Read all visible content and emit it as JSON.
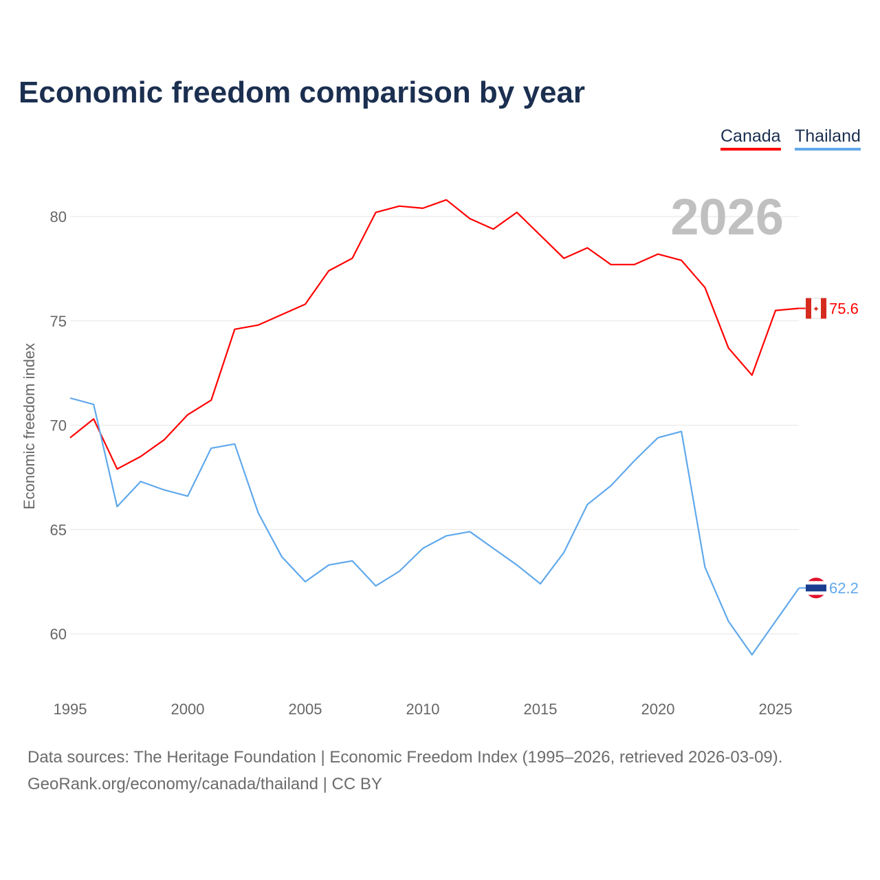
{
  "title": "Economic freedom comparison by year",
  "footer": {
    "line1": "Data sources: The Heritage Foundation | Economic Freedom Index (1995–2026, retrieved 2026-03-09).",
    "line2": "GeoRank.org/economy/canada/thailand | CC BY"
  },
  "chart_data": {
    "type": "line",
    "title": "Economic freedom comparison by year",
    "xlabel": "",
    "ylabel": "Economic freedom index",
    "year_label": "2026",
    "xlim": [
      1995,
      2026
    ],
    "ylim": [
      57.5,
      82.5
    ],
    "xticks": [
      1995,
      2000,
      2005,
      2010,
      2015,
      2020,
      2025
    ],
    "yticks": [
      60,
      65,
      70,
      75,
      80
    ],
    "grid": true,
    "legend_placement": "top-right",
    "x": [
      1995,
      1996,
      1997,
      1998,
      1999,
      2000,
      2001,
      2002,
      2003,
      2004,
      2005,
      2006,
      2007,
      2008,
      2009,
      2010,
      2011,
      2012,
      2013,
      2014,
      2015,
      2016,
      2017,
      2018,
      2019,
      2020,
      2021,
      2022,
      2023,
      2024,
      2025,
      2026
    ],
    "series": [
      {
        "name": "Canada",
        "color": "#ff0000",
        "end_label": "75.6",
        "values": [
          69.4,
          70.3,
          67.9,
          68.5,
          69.3,
          70.5,
          71.2,
          74.6,
          74.8,
          75.3,
          75.8,
          77.4,
          78.0,
          80.2,
          80.5,
          80.4,
          80.8,
          79.9,
          79.4,
          80.2,
          79.1,
          78.0,
          78.5,
          77.7,
          77.7,
          78.2,
          77.9,
          76.6,
          73.7,
          72.4,
          75.5,
          75.6
        ]
      },
      {
        "name": "Thailand",
        "color": "#5fa8ec",
        "end_label": "62.2",
        "values": [
          71.3,
          71.0,
          66.1,
          67.3,
          66.9,
          66.6,
          68.9,
          69.1,
          65.8,
          63.7,
          62.5,
          63.3,
          63.5,
          62.3,
          63.0,
          64.1,
          64.7,
          64.9,
          64.1,
          63.3,
          62.4,
          63.9,
          66.2,
          67.1,
          68.3,
          69.4,
          69.7,
          63.2,
          60.6,
          59.0,
          60.6,
          62.2
        ]
      }
    ]
  }
}
